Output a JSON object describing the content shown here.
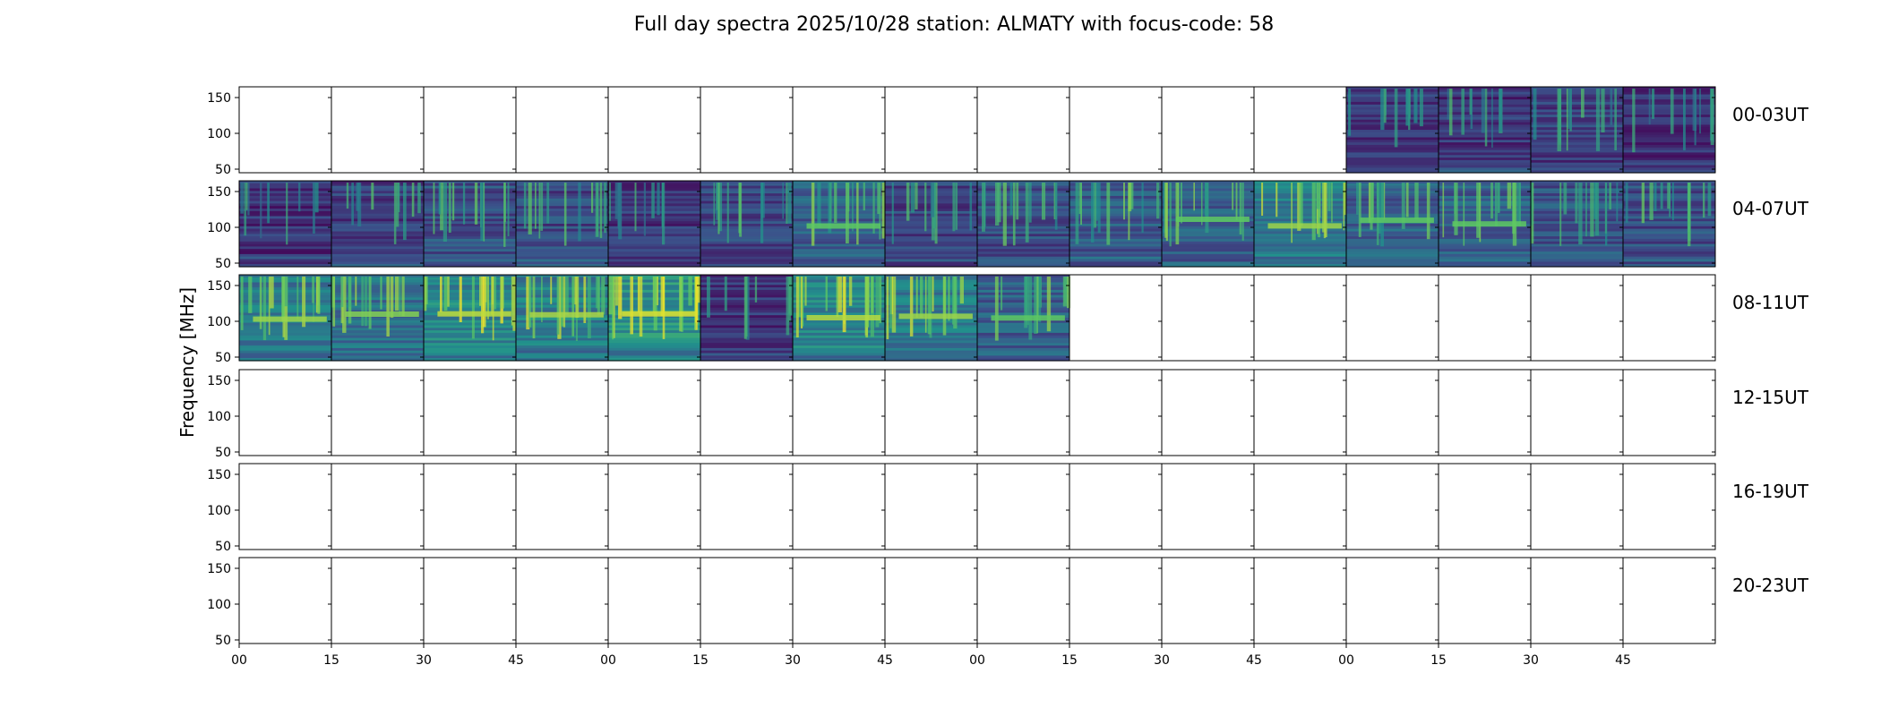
{
  "chart_data": {
    "type": "heatmap",
    "title": "Full day spectra 2025/10/28 station: ALMATY with focus-code: 58",
    "ylabel": "Frequency [MHz]",
    "xlabel": "",
    "ylim": [
      45,
      165
    ],
    "y_ticks": [
      50,
      100,
      150
    ],
    "x_tick_labels": [
      "00",
      "15",
      "30",
      "45",
      "00",
      "15",
      "30",
      "45",
      "00",
      "15",
      "30",
      "45",
      "00",
      "15",
      "30",
      "45"
    ],
    "grid": false,
    "colormap": "viridis",
    "row_labels": [
      "00-03UT",
      "04-07UT",
      "08-11UT",
      "12-15UT",
      "16-19UT",
      "20-23UT"
    ],
    "panels_per_row": 16,
    "panel_minutes": 15,
    "data_available": [
      [
        0,
        0,
        0,
        0,
        0,
        0,
        0,
        0,
        0,
        0,
        0,
        0,
        1,
        1,
        1,
        1
      ],
      [
        1,
        1,
        1,
        1,
        1,
        1,
        1,
        1,
        1,
        1,
        1,
        1,
        1,
        1,
        1,
        1
      ],
      [
        1,
        1,
        1,
        1,
        1,
        1,
        1,
        1,
        1,
        0,
        0,
        0,
        0,
        0,
        0,
        0
      ],
      [
        0,
        0,
        0,
        0,
        0,
        0,
        0,
        0,
        0,
        0,
        0,
        0,
        0,
        0,
        0,
        0
      ],
      [
        0,
        0,
        0,
        0,
        0,
        0,
        0,
        0,
        0,
        0,
        0,
        0,
        0,
        0,
        0,
        0
      ],
      [
        0,
        0,
        0,
        0,
        0,
        0,
        0,
        0,
        0,
        0,
        0,
        0,
        0,
        0,
        0,
        0
      ]
    ],
    "mean_intensity": [
      [
        0,
        0,
        0,
        0,
        0,
        0,
        0,
        0,
        0,
        0,
        0,
        0,
        0.15,
        0.15,
        0.18,
        0.14
      ],
      [
        0.14,
        0.18,
        0.25,
        0.22,
        0.16,
        0.22,
        0.3,
        0.2,
        0.24,
        0.28,
        0.3,
        0.4,
        0.3,
        0.3,
        0.26,
        0.24
      ],
      [
        0.4,
        0.36,
        0.45,
        0.42,
        0.5,
        0.14,
        0.44,
        0.4,
        0.3,
        0,
        0,
        0,
        0,
        0,
        0,
        0
      ]
    ],
    "colors": {
      "low": "#440154",
      "mid_low": "#3b528b",
      "mid": "#21918c",
      "mid_high": "#5ec962",
      "high": "#fde725"
    }
  }
}
